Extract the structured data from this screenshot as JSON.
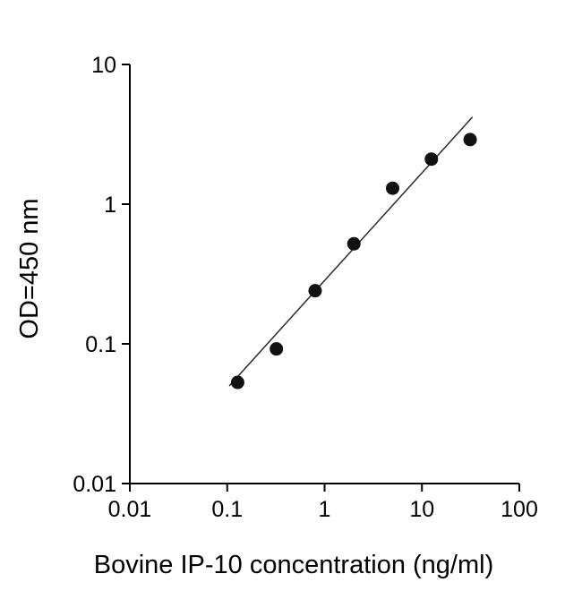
{
  "chart_data": {
    "type": "scatter",
    "title": "",
    "xlabel": "Bovine IP-10 concentration (ng/ml)",
    "ylabel": "OD=450 nm",
    "xscale": "log",
    "yscale": "log",
    "xlim": [
      0.01,
      100
    ],
    "ylim": [
      0.01,
      10
    ],
    "x_ticks": [
      0.01,
      0.1,
      1,
      10,
      100
    ],
    "x_tick_labels": [
      "0.01",
      "0.1",
      "1",
      "10",
      "100"
    ],
    "y_ticks": [
      10,
      1,
      0.1,
      0.01
    ],
    "y_tick_labels": [
      "10",
      "1",
      "0.1",
      "0.01"
    ],
    "grid": false,
    "legend": null,
    "points": [
      {
        "x": 0.128,
        "y": 0.053
      },
      {
        "x": 0.32,
        "y": 0.092
      },
      {
        "x": 0.8,
        "y": 0.24
      },
      {
        "x": 2.0,
        "y": 0.52
      },
      {
        "x": 5.0,
        "y": 1.3
      },
      {
        "x": 12.5,
        "y": 2.1
      },
      {
        "x": 31.25,
        "y": 2.9
      }
    ],
    "fit_line": {
      "x1": 0.105,
      "y1": 0.05,
      "x2": 33,
      "y2": 4.2
    },
    "marker": {
      "shape": "circle",
      "color": "#111111",
      "size": 7.5
    },
    "line_color": "#2b2b2b",
    "axis_color": "#000000"
  }
}
